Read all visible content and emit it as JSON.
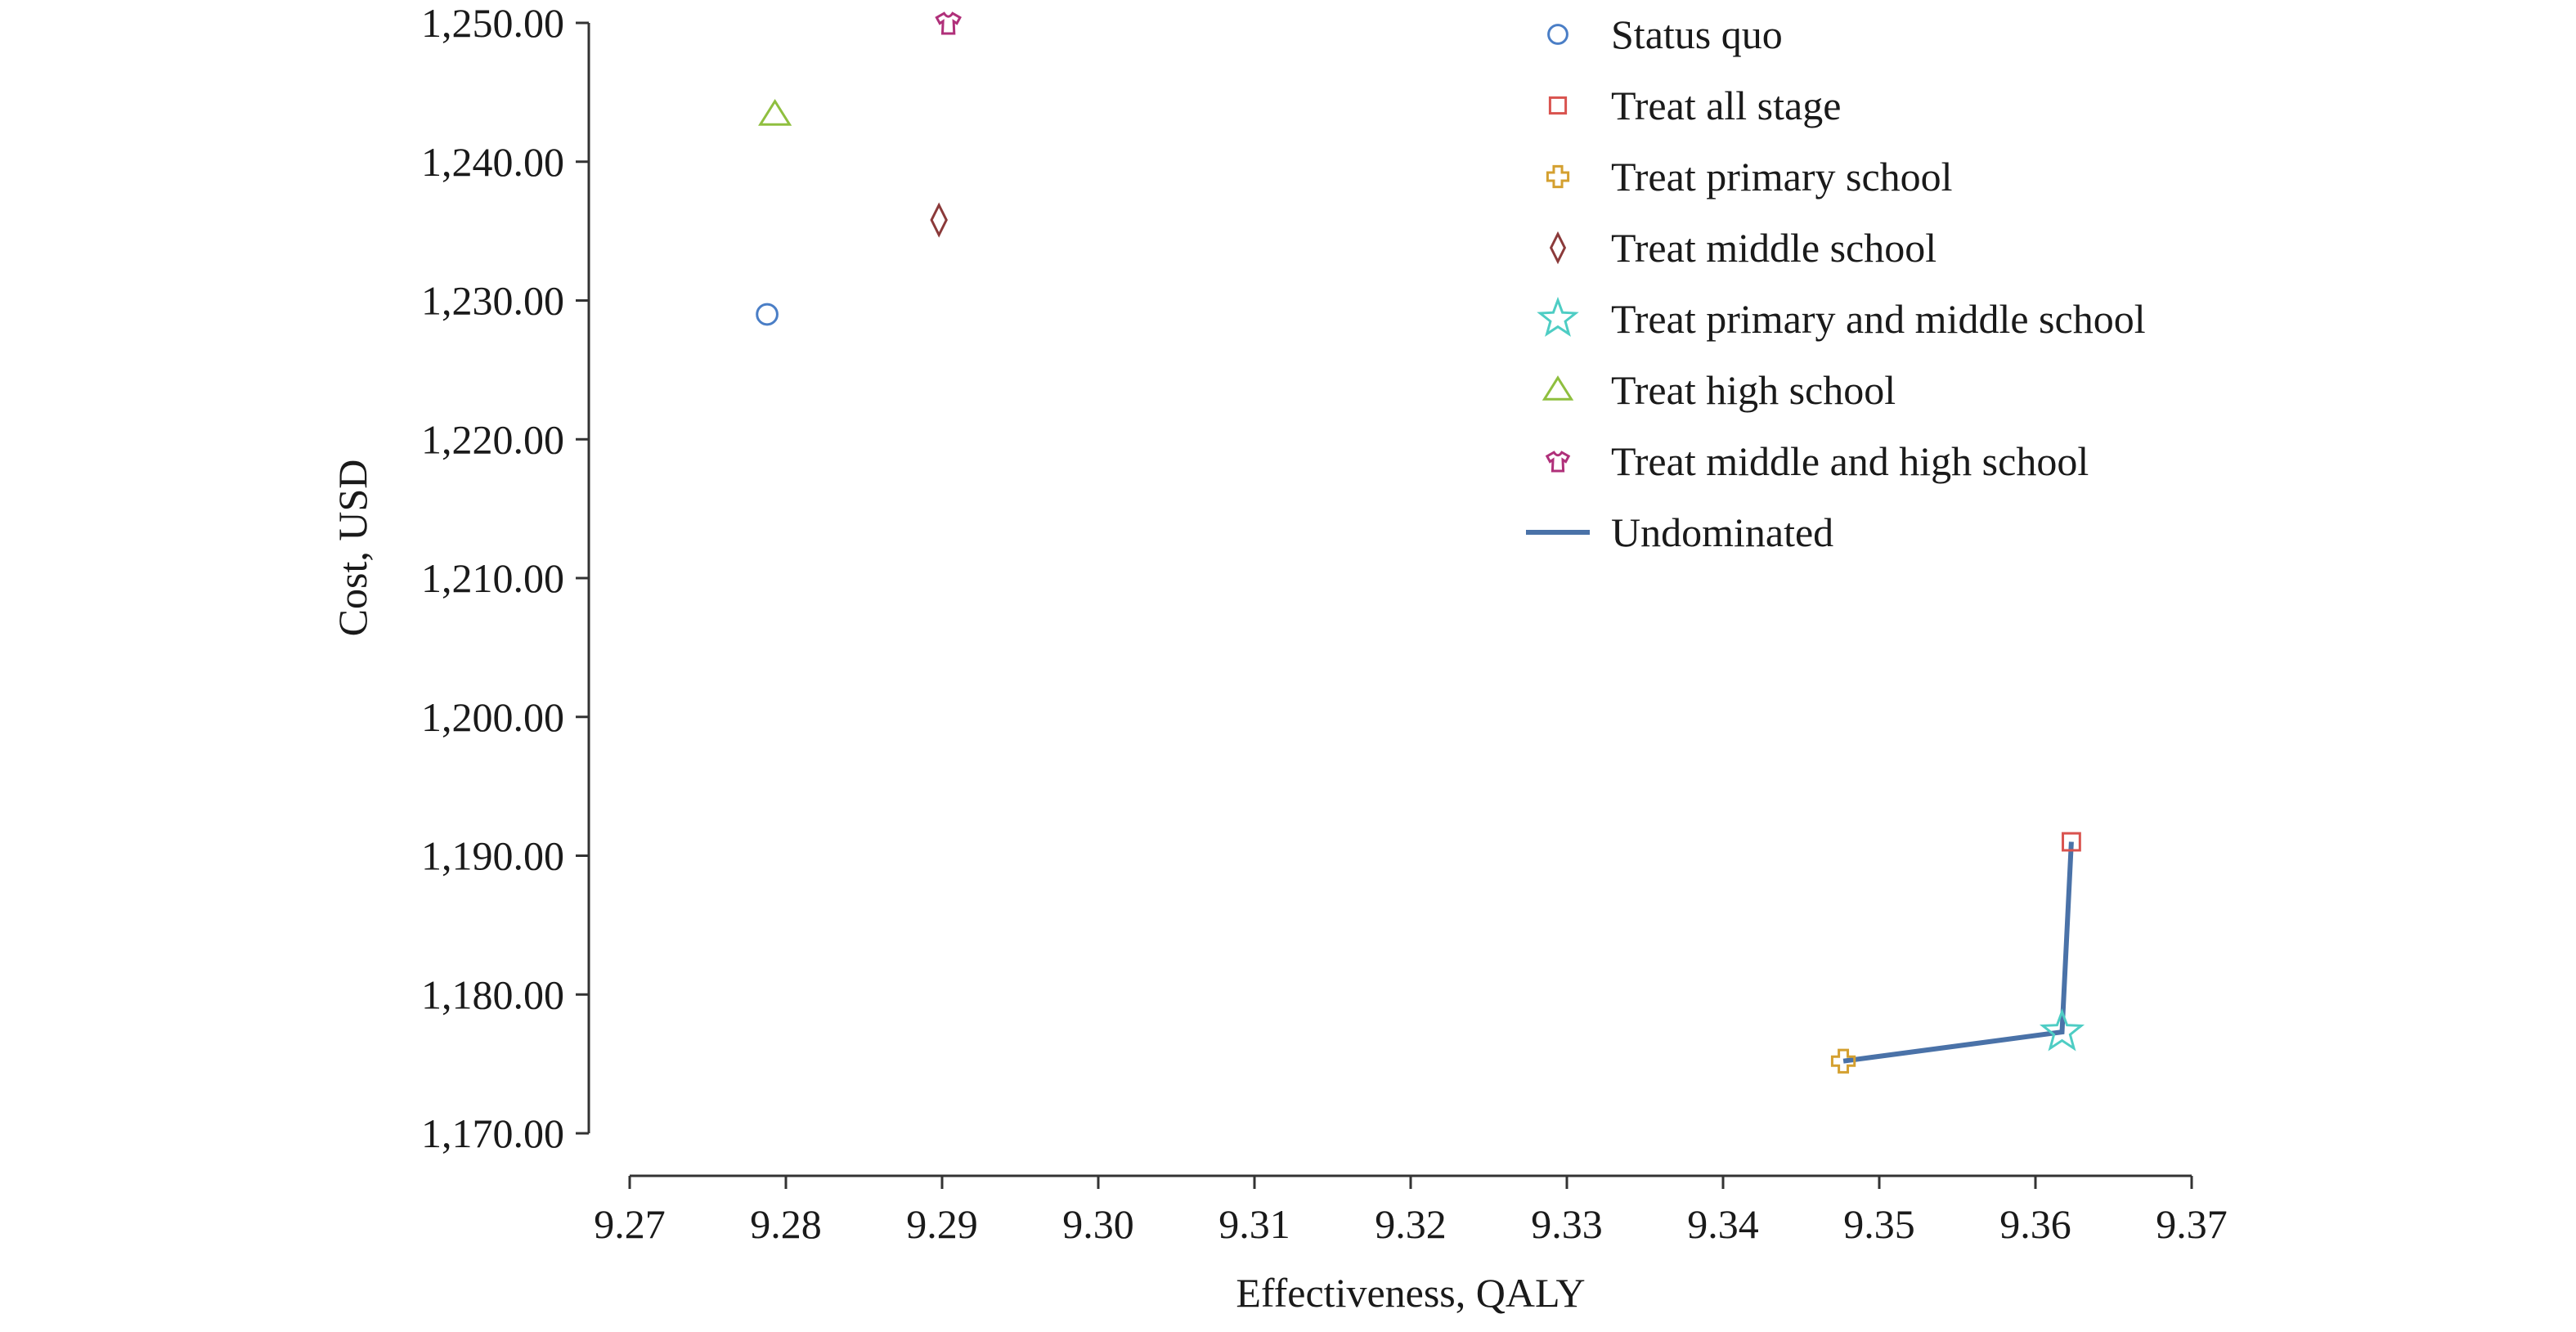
{
  "chart_data": {
    "type": "scatter",
    "xlabel": "Effectiveness, QALY",
    "ylabel": "Cost, USD",
    "xlim": [
      9.27,
      9.37
    ],
    "ylim": [
      1170,
      1250
    ],
    "x_ticks": [
      "9.27",
      "9.28",
      "9.29",
      "9.30",
      "9.31",
      "9.32",
      "9.33",
      "9.34",
      "9.35",
      "9.36",
      "9.37"
    ],
    "y_ticks": [
      "1,170.00",
      "1,180.00",
      "1,190.00",
      "1,200.00",
      "1,210.00",
      "1,220.00",
      "1,230.00",
      "1,240.00",
      "1,250.00"
    ],
    "grid": false,
    "legend_position": "top-right",
    "series": [
      {
        "name": "Status quo",
        "marker": "circle",
        "color": "#4a7ec6",
        "x": 9.2788,
        "y": 1229.0
      },
      {
        "name": "Treat all stage",
        "marker": "square",
        "color": "#d9534f",
        "x": 9.3623,
        "y": 1191.0
      },
      {
        "name": "Treat primary school",
        "marker": "cross",
        "color": "#d4a030",
        "x": 9.3477,
        "y": 1175.2
      },
      {
        "name": "Treat middle school",
        "marker": "diamond",
        "color": "#8b3a3a",
        "x": 9.2898,
        "y": 1235.8
      },
      {
        "name": "Treat primary and middle school",
        "marker": "star",
        "color": "#4ecdc4",
        "x": 9.3617,
        "y": 1177.3
      },
      {
        "name": "Treat high school",
        "marker": "triangle",
        "color": "#8fbf3f",
        "x": 9.2793,
        "y": 1243.4
      },
      {
        "name": "Treat middle and high school",
        "marker": "shirt",
        "color": "#b0307a",
        "x": 9.2904,
        "y": 1250.0
      }
    ],
    "line": {
      "name": "Undominated",
      "color": "#4a72a8",
      "x": [
        9.3477,
        9.3617,
        9.3623
      ],
      "y": [
        1175.2,
        1177.3,
        1191.0
      ]
    }
  }
}
